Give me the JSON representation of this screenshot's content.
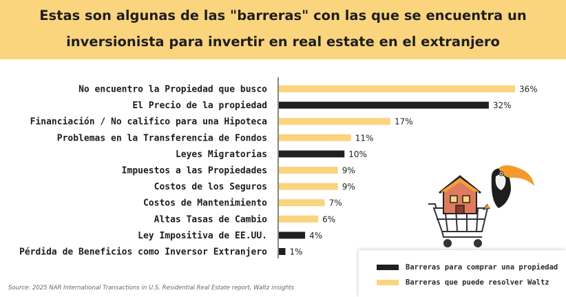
{
  "header": {
    "title_line1": "Estas son algunas de las \"barreras\" con las que se encuentra un",
    "title_line2": "inversionista para invertir en real estate en el extranjero"
  },
  "chart_data": {
    "type": "bar",
    "orientation": "horizontal",
    "categories": [
      "No encuentro la Propiedad que busco",
      "El Precio de la propiedad",
      "Financiación / No califico para una Hipoteca",
      "Problemas en la Transferencia de Fondos",
      "Leyes Migratorias",
      "Impuestos a las Propiedades",
      "Costos de los Seguros",
      "Costos de Mantenimiento",
      "Altas Tasas de Cambio",
      "Ley Impositiva de EE.UU.",
      "Pérdida de Beneficios como Inversor Extranjero"
    ],
    "values": [
      36,
      32,
      17,
      11,
      10,
      9,
      9,
      7,
      6,
      4,
      1
    ],
    "value_labels": [
      "36%",
      "32%",
      "17%",
      "11%",
      "10%",
      "9%",
      "9%",
      "7%",
      "6%",
      "4%",
      "1%"
    ],
    "groups": [
      "resolve",
      "buy",
      "resolve",
      "resolve",
      "buy",
      "resolve",
      "resolve",
      "resolve",
      "resolve",
      "buy",
      "buy"
    ],
    "xlim": [
      0,
      36
    ],
    "grid": false,
    "legend_position": "bottom-right",
    "legend": [
      {
        "key": "buy",
        "label": "Barreras para comprar una propiedad",
        "color": "#1f1f1f"
      },
      {
        "key": "resolve",
        "label": "Barreras que puede resolver Waltz",
        "color": "#fbd47e"
      }
    ]
  },
  "colors": {
    "header_bg": "#fbd47e",
    "bar_dark": "#1f1f1f",
    "bar_yellow": "#fbd47e",
    "axis": "#333333"
  },
  "source": "Source: 2025 NAR International Transactions in U.S. Residential Real Estate report, Waltz insights",
  "illustration": "toucan-with-house-cart-icon"
}
